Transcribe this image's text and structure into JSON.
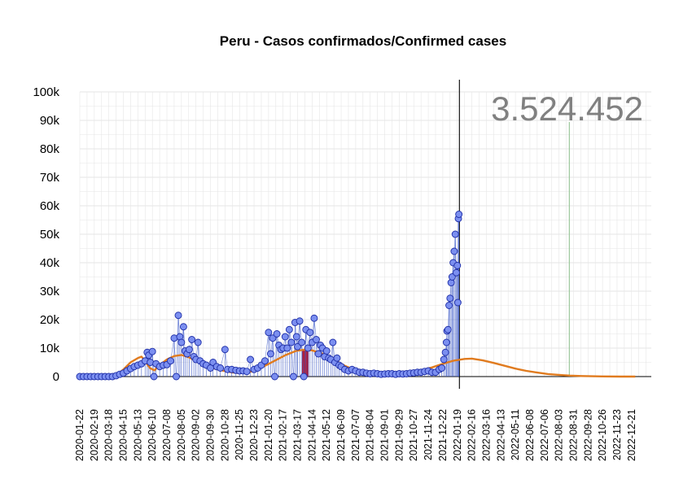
{
  "chart_data": {
    "type": "scatter",
    "title": "Peru - Casos confirmados/Confirmed cases",
    "total_cases_label": "3.524.452",
    "xlabel": "",
    "ylabel": "",
    "ylim": [
      0,
      100000
    ],
    "yticks": [
      {
        "value": 0,
        "label": "0"
      },
      {
        "value": 10000,
        "label": "10k"
      },
      {
        "value": 20000,
        "label": "20k"
      },
      {
        "value": 30000,
        "label": "30k"
      },
      {
        "value": 40000,
        "label": "40k"
      },
      {
        "value": 50000,
        "label": "50k"
      },
      {
        "value": 60000,
        "label": "60k"
      },
      {
        "value": 70000,
        "label": "70k"
      },
      {
        "value": 80000,
        "label": "80k"
      },
      {
        "value": 90000,
        "label": "90k"
      },
      {
        "value": 100000,
        "label": "100k"
      }
    ],
    "xlim": [
      "2020-01-22",
      "2023-01-28"
    ],
    "xticks": [
      "2020-01-22",
      "2020-02-19",
      "2020-03-18",
      "2020-04-15",
      "2020-05-13",
      "2020-06-10",
      "2020-07-08",
      "2020-08-05",
      "2020-09-02",
      "2020-09-30",
      "2020-10-28",
      "2020-11-25",
      "2020-12-23",
      "2021-01-20",
      "2021-02-17",
      "2021-03-17",
      "2021-04-14",
      "2021-05-12",
      "2021-06-09",
      "2021-07-07",
      "2021-08-04",
      "2021-09-01",
      "2021-09-29",
      "2021-10-27",
      "2021-11-24",
      "2021-12-22",
      "2022-01-19",
      "2022-02-16",
      "2022-03-16",
      "2022-04-13",
      "2022-05-11",
      "2022-06-08",
      "2022-07-06",
      "2022-08-03",
      "2022-08-31",
      "2022-09-28",
      "2022-10-26",
      "2022-11-23",
      "2022-12-21"
    ],
    "current_date": "2022-01-23",
    "projection_end_date": "2022-08-23",
    "grid": true,
    "colors": {
      "points_fill": "#7b8ff0",
      "points_stroke": "#1f2fa8",
      "trend": "#e07b1f",
      "highlight": "#b0203a",
      "current_line": "#000000",
      "projection_line": "#9cc79c",
      "grid": "#e6e6e6"
    },
    "series": [
      {
        "kind": "daily_points",
        "points": [
          [
            "2020-01-22",
            0
          ],
          [
            "2020-01-29",
            0
          ],
          [
            "2020-02-05",
            0
          ],
          [
            "2020-02-12",
            0
          ],
          [
            "2020-02-19",
            0
          ],
          [
            "2020-02-26",
            0
          ],
          [
            "2020-03-04",
            0
          ],
          [
            "2020-03-11",
            0
          ],
          [
            "2020-03-18",
            0
          ],
          [
            "2020-03-25",
            0
          ],
          [
            "2020-04-01",
            300
          ],
          [
            "2020-04-08",
            800
          ],
          [
            "2020-04-15",
            1200
          ],
          [
            "2020-04-22",
            2000
          ],
          [
            "2020-04-29",
            2800
          ],
          [
            "2020-05-06",
            3500
          ],
          [
            "2020-05-13",
            4000
          ],
          [
            "2020-05-20",
            4500
          ],
          [
            "2020-05-27",
            5500
          ],
          [
            "2020-05-31",
            8500
          ],
          [
            "2020-06-03",
            7500
          ],
          [
            "2020-06-06",
            5000
          ],
          [
            "2020-06-10",
            8800
          ],
          [
            "2020-06-13",
            0
          ],
          [
            "2020-06-17",
            4500
          ],
          [
            "2020-06-24",
            3500
          ],
          [
            "2020-07-01",
            4000
          ],
          [
            "2020-07-08",
            4200
          ],
          [
            "2020-07-15",
            5500
          ],
          [
            "2020-07-22",
            13500
          ],
          [
            "2020-07-26",
            0
          ],
          [
            "2020-07-30",
            21500
          ],
          [
            "2020-08-02",
            14000
          ],
          [
            "2020-08-05",
            12000
          ],
          [
            "2020-08-09",
            17500
          ],
          [
            "2020-08-12",
            9000
          ],
          [
            "2020-08-16",
            8000
          ],
          [
            "2020-08-20",
            9500
          ],
          [
            "2020-08-25",
            13000
          ],
          [
            "2020-08-29",
            7000
          ],
          [
            "2020-09-02",
            6000
          ],
          [
            "2020-09-06",
            12000
          ],
          [
            "2020-09-10",
            5500
          ],
          [
            "2020-09-16",
            4500
          ],
          [
            "2020-09-22",
            4000
          ],
          [
            "2020-09-30",
            3000
          ],
          [
            "2020-10-05",
            5000
          ],
          [
            "2020-10-12",
            3500
          ],
          [
            "2020-10-19",
            3000
          ],
          [
            "2020-10-28",
            9500
          ],
          [
            "2020-11-02",
            2500
          ],
          [
            "2020-11-10",
            2500
          ],
          [
            "2020-11-18",
            2200
          ],
          [
            "2020-11-25",
            2000
          ],
          [
            "2020-12-02",
            2000
          ],
          [
            "2020-12-09",
            1800
          ],
          [
            "2020-12-16",
            6000
          ],
          [
            "2020-12-23",
            2500
          ],
          [
            "2020-12-30",
            3000
          ],
          [
            "2021-01-06",
            4000
          ],
          [
            "2021-01-13",
            5500
          ],
          [
            "2021-01-20",
            15500
          ],
          [
            "2021-01-24",
            8000
          ],
          [
            "2021-01-28",
            13500
          ],
          [
            "2021-02-01",
            0
          ],
          [
            "2021-02-05",
            15000
          ],
          [
            "2021-02-09",
            11000
          ],
          [
            "2021-02-13",
            9500
          ],
          [
            "2021-02-17",
            10000
          ],
          [
            "2021-02-21",
            14000
          ],
          [
            "2021-02-25",
            10000
          ],
          [
            "2021-03-01",
            16500
          ],
          [
            "2021-03-05",
            12000
          ],
          [
            "2021-03-09",
            0
          ],
          [
            "2021-03-12",
            19000
          ],
          [
            "2021-03-15",
            14000
          ],
          [
            "2021-03-17",
            10500
          ],
          [
            "2021-03-21",
            19500
          ],
          [
            "2021-03-25",
            12000
          ],
          [
            "2021-03-29",
            0
          ],
          [
            "2021-04-02",
            16500
          ],
          [
            "2021-04-06",
            10000
          ],
          [
            "2021-04-10",
            15500
          ],
          [
            "2021-04-14",
            12000
          ],
          [
            "2021-04-18",
            20500
          ],
          [
            "2021-04-22",
            13000
          ],
          [
            "2021-04-26",
            8000
          ],
          [
            "2021-04-30",
            11000
          ],
          [
            "2021-05-04",
            10000
          ],
          [
            "2021-05-08",
            7000
          ],
          [
            "2021-05-12",
            9000
          ],
          [
            "2021-05-16",
            6500
          ],
          [
            "2021-05-20",
            6000
          ],
          [
            "2021-05-24",
            12000
          ],
          [
            "2021-05-28",
            5000
          ],
          [
            "2021-06-01",
            6500
          ],
          [
            "2021-06-05",
            4000
          ],
          [
            "2021-06-09",
            3500
          ],
          [
            "2021-06-16",
            2500
          ],
          [
            "2021-06-23",
            2000
          ],
          [
            "2021-06-30",
            2500
          ],
          [
            "2021-07-07",
            2000
          ],
          [
            "2021-07-14",
            1500
          ],
          [
            "2021-07-21",
            1500
          ],
          [
            "2021-07-28",
            1200
          ],
          [
            "2021-08-04",
            1000
          ],
          [
            "2021-08-11",
            1200
          ],
          [
            "2021-08-18",
            1000
          ],
          [
            "2021-08-25",
            800
          ],
          [
            "2021-09-01",
            900
          ],
          [
            "2021-09-08",
            1000
          ],
          [
            "2021-09-15",
            1000
          ],
          [
            "2021-09-22",
            800
          ],
          [
            "2021-09-29",
            1000
          ],
          [
            "2021-10-06",
            900
          ],
          [
            "2021-10-13",
            1000
          ],
          [
            "2021-10-20",
            1200
          ],
          [
            "2021-10-27",
            1300
          ],
          [
            "2021-11-03",
            1500
          ],
          [
            "2021-11-10",
            1500
          ],
          [
            "2021-11-17",
            1800
          ],
          [
            "2021-11-24",
            2000
          ],
          [
            "2021-12-01",
            1500
          ],
          [
            "2021-12-08",
            1500
          ],
          [
            "2021-12-15",
            2500
          ],
          [
            "2021-12-20",
            3000
          ],
          [
            "2021-12-24",
            6000
          ],
          [
            "2021-12-27",
            8500
          ],
          [
            "2021-12-29",
            12000
          ],
          [
            "2021-12-30",
            16000
          ],
          [
            "2022-01-01",
            16500
          ],
          [
            "2022-01-03",
            25000
          ],
          [
            "2022-01-05",
            27500
          ],
          [
            "2022-01-07",
            33000
          ],
          [
            "2022-01-09",
            35000
          ],
          [
            "2022-01-11",
            40000
          ],
          [
            "2022-01-13",
            44000
          ],
          [
            "2022-01-15",
            50000
          ],
          [
            "2022-01-17",
            36500
          ],
          [
            "2022-01-19",
            39000
          ],
          [
            "2022-01-20",
            26000
          ],
          [
            "2022-01-21",
            55500
          ],
          [
            "2022-01-22",
            57000
          ]
        ]
      },
      {
        "kind": "trend_fit",
        "points": [
          [
            "2020-03-18",
            0
          ],
          [
            "2020-03-31",
            200
          ],
          [
            "2020-04-15",
            2500
          ],
          [
            "2020-04-29",
            5000
          ],
          [
            "2020-05-13",
            6500
          ],
          [
            "2020-05-20",
            7000
          ],
          [
            "2020-05-27",
            5500
          ],
          [
            "2020-06-05",
            3000
          ],
          [
            "2020-06-14",
            2200
          ],
          [
            "2020-06-24",
            4000
          ],
          [
            "2020-07-08",
            6000
          ],
          [
            "2020-07-22",
            7200
          ],
          [
            "2020-08-05",
            7600
          ],
          [
            "2020-08-19",
            6800
          ],
          [
            "2020-09-02",
            5500
          ],
          [
            "2020-09-16",
            4200
          ],
          [
            "2020-09-30",
            3200
          ],
          [
            "2020-10-21",
            2200
          ],
          [
            "2020-11-10",
            1500
          ],
          [
            "2020-11-25",
            1200
          ],
          [
            "2020-12-10",
            1500
          ],
          [
            "2020-12-23",
            2000
          ],
          [
            "2021-01-10",
            3500
          ],
          [
            "2021-01-31",
            5500
          ],
          [
            "2021-02-21",
            7500
          ],
          [
            "2021-03-14",
            9000
          ],
          [
            "2021-03-31",
            9500
          ],
          [
            "2021-04-14",
            9200
          ],
          [
            "2021-05-05",
            8000
          ],
          [
            "2021-05-26",
            6000
          ],
          [
            "2021-06-16",
            3800
          ],
          [
            "2021-07-07",
            2200
          ],
          [
            "2021-07-28",
            1300
          ],
          [
            "2021-08-18",
            1000
          ],
          [
            "2021-09-08",
            900
          ],
          [
            "2021-09-29",
            1000
          ],
          [
            "2021-10-20",
            1500
          ],
          [
            "2021-11-10",
            2200
          ],
          [
            "2021-12-01",
            3200
          ],
          [
            "2021-12-22",
            4500
          ],
          [
            "2022-01-12",
            5600
          ],
          [
            "2022-02-02",
            6200
          ],
          [
            "2022-02-16",
            6300
          ],
          [
            "2022-03-09",
            5700
          ],
          [
            "2022-03-30",
            4800
          ],
          [
            "2022-04-20",
            3800
          ],
          [
            "2022-05-11",
            2800
          ],
          [
            "2022-06-01",
            2000
          ],
          [
            "2022-06-22",
            1400
          ],
          [
            "2022-07-13",
            900
          ],
          [
            "2022-08-03",
            600
          ],
          [
            "2022-08-24",
            350
          ],
          [
            "2022-09-14",
            200
          ],
          [
            "2022-10-05",
            100
          ],
          [
            "2022-10-26",
            50
          ],
          [
            "2022-11-30",
            10
          ],
          [
            "2022-12-28",
            0
          ]
        ]
      },
      {
        "kind": "highlight_bars",
        "points": [
          [
            "2021-03-26",
            0
          ],
          [
            "2021-03-27",
            9000
          ],
          [
            "2021-03-28",
            9500
          ],
          [
            "2021-03-29",
            9200
          ],
          [
            "2021-03-30",
            9000
          ],
          [
            "2021-03-31",
            8500
          ],
          [
            "2021-04-01",
            9500
          ],
          [
            "2021-04-02",
            9000
          ],
          [
            "2021-04-03",
            8800
          ],
          [
            "2021-04-04",
            9200
          ],
          [
            "2021-04-05",
            9300
          ],
          [
            "2021-04-06",
            8700
          ]
        ]
      }
    ]
  }
}
